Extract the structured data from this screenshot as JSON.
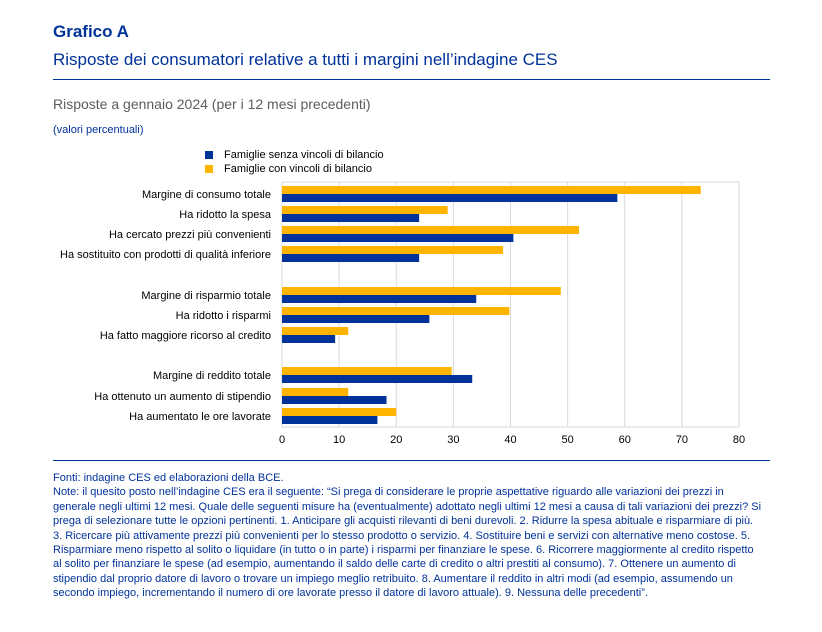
{
  "header": {
    "title": "Grafico A",
    "subtitle": "Risposte dei consumatori relative a tutti i margini nell’indagine CES"
  },
  "chart_data": {
    "type": "bar",
    "orientation": "horizontal",
    "title": "Risposte a gennaio 2024 (per i 12 mesi precedenti)",
    "ylabel": "(valori percentuali)",
    "xlim": [
      0,
      80
    ],
    "xticks": [
      0,
      10,
      20,
      30,
      40,
      50,
      60,
      70,
      80
    ],
    "grid": true,
    "legend_position": "top-left",
    "categories": [
      "Margine di consumo totale",
      "Ha ridotto la spesa",
      "Ha cercato prezzi più convenienti",
      "Ha sostituito con prodotti di qualità inferiore",
      "Margine di risparmio totale",
      "Ha ridotto i risparmi",
      "Ha fatto maggiore ricorso al credito",
      "Margine di reddito totale",
      "Ha ottenuto un aumento di stipendio",
      "Ha aumentato le ore lavorate"
    ],
    "series": [
      {
        "name": "Famiglie senza vincoli di bilancio",
        "color": "#003299",
        "values": [
          58.7,
          24,
          40.5,
          24,
          34,
          25.8,
          9.3,
          33.3,
          18.3,
          16.7
        ]
      },
      {
        "name": "Famiglie con vincoli di bilancio",
        "color": "#FFB400",
        "values": [
          73.3,
          29,
          52,
          38.7,
          48.8,
          39.8,
          11.6,
          29.7,
          11.6,
          20
        ]
      }
    ]
  },
  "notes": {
    "source": "Fonti: indagine CES ed elaborazioni della BCE.",
    "note": "Note: il quesito posto nell’indagine CES era il seguente: “Si prega di considerare le proprie aspettative riguardo alle variazioni dei prezzi in generale negli ultimi 12 mesi. Quale delle seguenti misure ha (eventualmente) adottato negli ultimi 12 mesi a causa di tali variazioni dei prezzi? Si prega di selezionare tutte le opzioni pertinenti. 1. Anticipare gli acquisti rilevanti di beni durevoli. 2. Ridurre la spesa abituale e risparmiare di più. 3. Ricercare più attivamente prezzi più convenienti per lo stesso prodotto o servizio. 4. Sostituire beni e servizi con alternative meno costose. 5. Risparmiare meno rispetto al solito o liquidare (in tutto o in parte) i risparmi per finanziare le spese. 6. Ricorrere maggiormente al credito rispetto al solito per finanziare le spese (ad esempio, aumentando il saldo delle carte di credito o altri prestiti al consumo). 7. Ottenere un aumento di stipendio dal proprio datore di lavoro o trovare un impiego meglio retribuito. 8. Aumentare il reddito in altri modi (ad esempio, assumendo un secondo impiego, incrementando il numero di ore lavorate presso il datore di lavoro attuale). 9. Nessuna delle precedenti”."
  }
}
